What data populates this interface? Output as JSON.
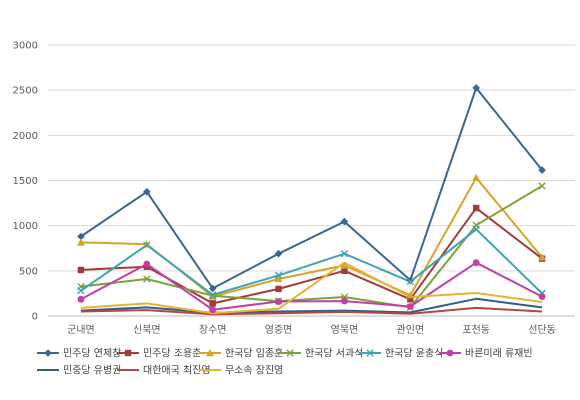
{
  "chart_data": {
    "type": "line",
    "title": "",
    "xlabel": "",
    "ylabel": "",
    "ylim": [
      0,
      3000
    ],
    "yticks": [
      0,
      500,
      1000,
      1500,
      2000,
      2500,
      3000
    ],
    "grid": true,
    "legend_position": "bottom",
    "categories": [
      "군내면",
      "신북면",
      "창수면",
      "영중면",
      "영북면",
      "관인면",
      "포천동",
      "선단동"
    ],
    "series": [
      {
        "name": "민주당 연제창",
        "color": "#3c6592",
        "marker": "diamond",
        "values": [
          880,
          1375,
          305,
          690,
          1045,
          395,
          2525,
          1615
        ]
      },
      {
        "name": "민주당 조용춘",
        "color": "#a23b3b",
        "marker": "square",
        "values": [
          510,
          545,
          140,
          300,
          500,
          185,
          1195,
          635
        ]
      },
      {
        "name": "한국당 임종훈",
        "color": "#d6a52a",
        "marker": "triangle",
        "values": [
          815,
          795,
          215,
          410,
          560,
          230,
          1530,
          650
        ]
      },
      {
        "name": "한국당 서과석",
        "color": "#7aa33a",
        "marker": "x",
        "values": [
          325,
          410,
          225,
          165,
          210,
          95,
          1005,
          1440
        ]
      },
      {
        "name": "한국당 윤충식",
        "color": "#3fa3b5",
        "marker": "x",
        "values": [
          280,
          785,
          235,
          450,
          690,
          380,
          960,
          250
        ]
      },
      {
        "name": "바른미래 류재빈",
        "color": "#c040a6",
        "marker": "circle",
        "values": [
          185,
          575,
          70,
          160,
          165,
          105,
          590,
          215
        ]
      },
      {
        "name": "민중당 유병권",
        "color": "#2f5f86",
        "marker": "none",
        "values": [
          60,
          95,
          35,
          50,
          60,
          40,
          190,
          95
        ]
      },
      {
        "name": "대한애국 최진영",
        "color": "#b54646",
        "marker": "none",
        "values": [
          50,
          65,
          20,
          30,
          45,
          25,
          90,
          50
        ]
      },
      {
        "name": "무소속 장진영",
        "color": "#e3b432",
        "marker": "none",
        "values": [
          90,
          140,
          30,
          80,
          590,
          210,
          255,
          155
        ]
      }
    ]
  }
}
